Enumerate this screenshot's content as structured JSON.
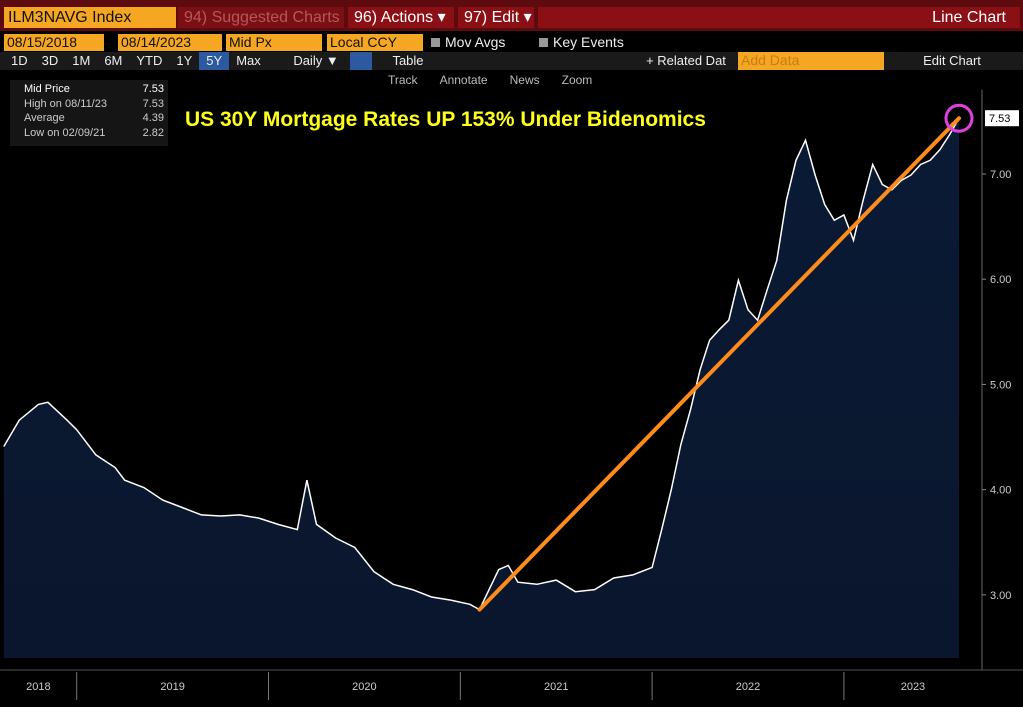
{
  "header": {
    "ticker": "ILM3NAVG Index",
    "suggested": "94) Suggested Charts",
    "actions": "96) Actions ▾",
    "edit": "97) Edit ▾",
    "view": "Line Chart"
  },
  "controls": {
    "start_date": "08/15/2018",
    "end_date": "08/14/2023",
    "field": "Mid Px",
    "currency": "Local CCY",
    "mov_avgs": "Mov Avgs",
    "key_events": "Key Events",
    "periods": [
      "1D",
      "3D",
      "1M",
      "6M",
      "YTD",
      "1Y",
      "5Y",
      "Max"
    ],
    "frequency": "Daily ▼",
    "table": "Table",
    "related": "+ Related Dat",
    "add_data": "Add Data",
    "edit_chart": "Edit Chart",
    "tools": [
      "Track",
      "Annotate",
      "News",
      "Zoom"
    ]
  },
  "chart_data": {
    "type": "area",
    "title": "US 30Y Mortgage Rates UP 153% Under Bidenomics",
    "legend": [
      {
        "label": "Mid Price",
        "value": 7.53
      },
      {
        "label": "High on 08/11/23",
        "value": 7.53
      },
      {
        "label": "Average",
        "value": 4.39
      },
      {
        "label": "Low on 02/09/21",
        "value": 2.82
      }
    ],
    "x": [
      2018.62,
      2018.7,
      2018.8,
      2018.85,
      2018.95,
      2019.0,
      2019.1,
      2019.2,
      2019.25,
      2019.35,
      2019.45,
      2019.55,
      2019.65,
      2019.75,
      2019.85,
      2019.95,
      2020.05,
      2020.15,
      2020.2,
      2020.25,
      2020.35,
      2020.45,
      2020.55,
      2020.65,
      2020.75,
      2020.85,
      2020.95,
      2021.05,
      2021.1,
      2021.2,
      2021.25,
      2021.3,
      2021.4,
      2021.5,
      2021.6,
      2021.7,
      2021.8,
      2021.9,
      2022.0,
      2022.05,
      2022.1,
      2022.15,
      2022.2,
      2022.25,
      2022.3,
      2022.35,
      2022.4,
      2022.45,
      2022.5,
      2022.55,
      2022.6,
      2022.65,
      2022.7,
      2022.75,
      2022.8,
      2022.85,
      2022.9,
      2022.95,
      2023.0,
      2023.05,
      2023.1,
      2023.15,
      2023.2,
      2023.25,
      2023.3,
      2023.35,
      2023.4,
      2023.45,
      2023.5,
      2023.55,
      2023.6
    ],
    "series": [
      {
        "name": "Mid Price",
        "color": "#ffffff",
        "fill": "#0b1a35",
        "values": [
          4.41,
          4.66,
          4.81,
          4.83,
          4.66,
          4.57,
          4.33,
          4.21,
          4.09,
          4.02,
          3.9,
          3.83,
          3.76,
          3.75,
          3.76,
          3.73,
          3.67,
          3.62,
          4.09,
          3.67,
          3.54,
          3.45,
          3.22,
          3.1,
          3.05,
          2.98,
          2.95,
          2.91,
          2.86,
          3.24,
          3.28,
          3.12,
          3.1,
          3.14,
          3.03,
          3.05,
          3.16,
          3.19,
          3.26,
          3.62,
          4.0,
          4.43,
          4.76,
          5.14,
          5.42,
          5.52,
          5.61,
          5.99,
          5.71,
          5.61,
          5.9,
          6.18,
          6.75,
          7.13,
          7.32,
          6.99,
          6.71,
          6.56,
          6.61,
          6.37,
          6.75,
          7.09,
          6.9,
          6.85,
          6.94,
          6.99,
          7.09,
          7.13,
          7.23,
          7.37,
          7.53
        ]
      }
    ],
    "trend_line": {
      "x": [
        2021.1,
        2023.6
      ],
      "values": [
        2.86,
        7.53
      ],
      "color": "#ff8c1a"
    },
    "xlim": [
      2018.6,
      2023.72
    ],
    "xticks": [
      2018,
      2019,
      2020,
      2021,
      2022,
      2023
    ],
    "ylim": [
      2.4,
      7.8
    ],
    "yticks": [
      {
        "value": 3,
        "label": "3.00"
      },
      {
        "value": 4,
        "label": "4.00"
      },
      {
        "value": 5,
        "label": "5.00"
      },
      {
        "value": 6,
        "label": "6.00"
      },
      {
        "value": 7,
        "label": "7.00"
      }
    ],
    "grid": false
  }
}
